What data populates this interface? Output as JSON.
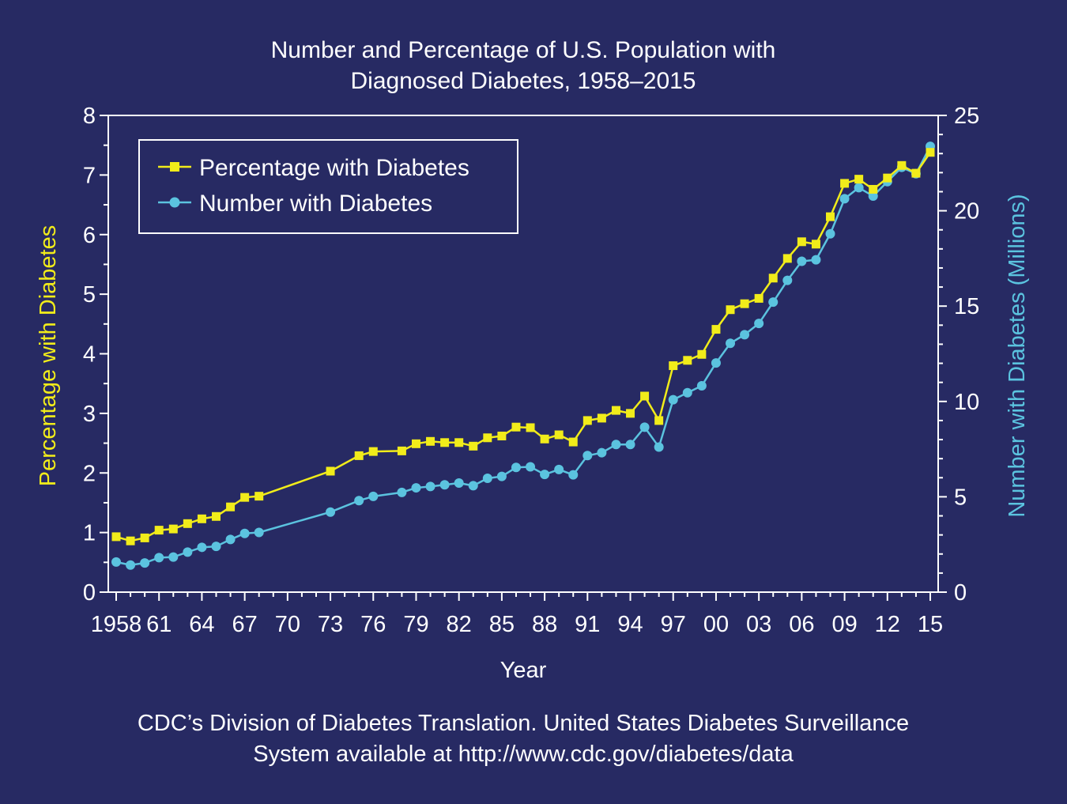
{
  "colors": {
    "background": "#272a63",
    "percentage_series": "#f1ec1a",
    "number_series": "#5bc3df",
    "axis_and_text": "#ffffff"
  },
  "chart_data": {
    "type": "line",
    "title_line1": "Number and Percentage of U.S. Population with",
    "title_line2": "Diagnosed Diabetes, 1958–2015",
    "xlabel": "Year",
    "ylabel_left": "Percentage with Diabetes",
    "ylabel_right": "Number with Diabetes (Millions)",
    "xlim": [
      1958,
      2015
    ],
    "ylim_left": [
      0,
      8
    ],
    "ylim_right": [
      0,
      25
    ],
    "x_ticks": [
      {
        "year": 1958,
        "label": "1958"
      },
      {
        "year": 1961,
        "label": "61"
      },
      {
        "year": 1964,
        "label": "64"
      },
      {
        "year": 1967,
        "label": "67"
      },
      {
        "year": 1970,
        "label": "70"
      },
      {
        "year": 1973,
        "label": "73"
      },
      {
        "year": 1976,
        "label": "76"
      },
      {
        "year": 1979,
        "label": "79"
      },
      {
        "year": 1982,
        "label": "82"
      },
      {
        "year": 1985,
        "label": "85"
      },
      {
        "year": 1988,
        "label": "88"
      },
      {
        "year": 1991,
        "label": "91"
      },
      {
        "year": 1994,
        "label": "94"
      },
      {
        "year": 1997,
        "label": "97"
      },
      {
        "year": 2000,
        "label": "00"
      },
      {
        "year": 2003,
        "label": "03"
      },
      {
        "year": 2006,
        "label": "06"
      },
      {
        "year": 2009,
        "label": "09"
      },
      {
        "year": 2012,
        "label": "12"
      },
      {
        "year": 2015,
        "label": "15"
      }
    ],
    "y_ticks_left": [
      "0",
      "1",
      "2",
      "3",
      "4",
      "5",
      "6",
      "7",
      "8"
    ],
    "y_ticks_right": [
      "0",
      "5",
      "10",
      "15",
      "20",
      "25"
    ],
    "legend": [
      {
        "label": "Percentage with Diabetes",
        "series": "percentage"
      },
      {
        "label": "Number with Diabetes",
        "series": "number"
      }
    ],
    "legend_position": "top-left",
    "series": [
      {
        "name": "Percentage with Diabetes",
        "axis": "left",
        "marker": "square",
        "points": [
          [
            1958,
            0.93
          ],
          [
            1959,
            0.86
          ],
          [
            1960,
            0.91
          ],
          [
            1961,
            1.04
          ],
          [
            1962,
            1.06
          ],
          [
            1963,
            1.15
          ],
          [
            1964,
            1.23
          ],
          [
            1965,
            1.27
          ],
          [
            1966,
            1.43
          ],
          [
            1967,
            1.59
          ],
          [
            1968,
            1.61
          ],
          [
            1973,
            2.03
          ],
          [
            1975,
            2.29
          ],
          [
            1976,
            2.36
          ],
          [
            1978,
            2.37
          ],
          [
            1979,
            2.49
          ],
          [
            1980,
            2.53
          ],
          [
            1981,
            2.51
          ],
          [
            1982,
            2.51
          ],
          [
            1983,
            2.45
          ],
          [
            1984,
            2.59
          ],
          [
            1985,
            2.62
          ],
          [
            1986,
            2.77
          ],
          [
            1987,
            2.76
          ],
          [
            1988,
            2.57
          ],
          [
            1989,
            2.64
          ],
          [
            1990,
            2.52
          ],
          [
            1991,
            2.88
          ],
          [
            1992,
            2.92
          ],
          [
            1993,
            3.05
          ],
          [
            1994,
            3.0
          ],
          [
            1995,
            3.29
          ],
          [
            1996,
            2.88
          ],
          [
            1997,
            3.8
          ],
          [
            1998,
            3.89
          ],
          [
            1999,
            3.99
          ],
          [
            2000,
            4.41
          ],
          [
            2001,
            4.74
          ],
          [
            2002,
            4.84
          ],
          [
            2003,
            4.93
          ],
          [
            2004,
            5.27
          ],
          [
            2005,
            5.6
          ],
          [
            2006,
            5.88
          ],
          [
            2007,
            5.84
          ],
          [
            2008,
            6.3
          ],
          [
            2009,
            6.86
          ],
          [
            2010,
            6.93
          ],
          [
            2011,
            6.76
          ],
          [
            2012,
            6.95
          ],
          [
            2013,
            7.16
          ],
          [
            2014,
            7.03
          ],
          [
            2015,
            7.38
          ]
        ]
      },
      {
        "name": "Number with Diabetes",
        "axis": "right",
        "marker": "circle",
        "points": [
          [
            1958,
            1.58
          ],
          [
            1959,
            1.42
          ],
          [
            1960,
            1.53
          ],
          [
            1961,
            1.81
          ],
          [
            1962,
            1.84
          ],
          [
            1963,
            2.1
          ],
          [
            1964,
            2.35
          ],
          [
            1965,
            2.4
          ],
          [
            1966,
            2.76
          ],
          [
            1967,
            3.08
          ],
          [
            1968,
            3.13
          ],
          [
            1973,
            4.2
          ],
          [
            1975,
            4.8
          ],
          [
            1976,
            5.02
          ],
          [
            1978,
            5.23
          ],
          [
            1979,
            5.47
          ],
          [
            1980,
            5.54
          ],
          [
            1981,
            5.63
          ],
          [
            1982,
            5.72
          ],
          [
            1983,
            5.58
          ],
          [
            1984,
            5.97
          ],
          [
            1985,
            6.07
          ],
          [
            1986,
            6.54
          ],
          [
            1987,
            6.57
          ],
          [
            1988,
            6.17
          ],
          [
            1989,
            6.43
          ],
          [
            1990,
            6.15
          ],
          [
            1991,
            7.16
          ],
          [
            1992,
            7.31
          ],
          [
            1993,
            7.74
          ],
          [
            1994,
            7.74
          ],
          [
            1995,
            8.65
          ],
          [
            1996,
            7.61
          ],
          [
            1997,
            10.09
          ],
          [
            1998,
            10.46
          ],
          [
            1999,
            10.82
          ],
          [
            2000,
            12.02
          ],
          [
            2001,
            13.05
          ],
          [
            2002,
            13.5
          ],
          [
            2003,
            14.09
          ],
          [
            2004,
            15.21
          ],
          [
            2005,
            16.35
          ],
          [
            2006,
            17.35
          ],
          [
            2007,
            17.43
          ],
          [
            2008,
            18.79
          ],
          [
            2009,
            20.63
          ],
          [
            2010,
            21.21
          ],
          [
            2011,
            20.77
          ],
          [
            2012,
            21.53
          ],
          [
            2013,
            22.28
          ],
          [
            2014,
            21.94
          ],
          [
            2015,
            23.38
          ]
        ]
      }
    ]
  },
  "footer": {
    "line1": "CDC’s Division of Diabetes Translation. United States Diabetes Surveillance",
    "line2": "System available at http://www.cdc.gov/diabetes/data"
  }
}
